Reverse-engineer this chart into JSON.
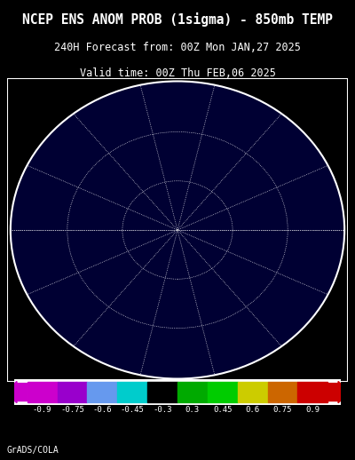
{
  "title_line1": "NCEP ENS ANOM PROB (1sigma) - 850mb TEMP",
  "title_line2": "240H Forecast from: 00Z Mon JAN,27 2025",
  "title_line3": "Valid time: 00Z Thu FEB,06 2025",
  "watermark": "GrADS/COLA",
  "background_color": "#000000",
  "title_color": "#ffffff",
  "colorbar_colors": [
    "#cc00cc",
    "#9900cc",
    "#6600cc",
    "#00cccc",
    "#000000",
    "#00aa00",
    "#00cc00",
    "#cccc00",
    "#cc6600",
    "#cc0000"
  ],
  "colorbar_bounds": [
    -0.9,
    -0.75,
    -0.6,
    -0.45,
    -0.3,
    0.3,
    0.45,
    0.6,
    0.75,
    0.9
  ],
  "colorbar_labels": [
    "-0.9",
    "-0.75",
    "-0.6",
    "-0.45",
    "-0.3",
    "0.3",
    "0.45",
    "0.6",
    "0.75",
    "0.9"
  ],
  "map_border_color": "#ffffff",
  "colorbar_arrow_left_color": "#cc00cc",
  "colorbar_arrow_right_color": "#cc0000"
}
